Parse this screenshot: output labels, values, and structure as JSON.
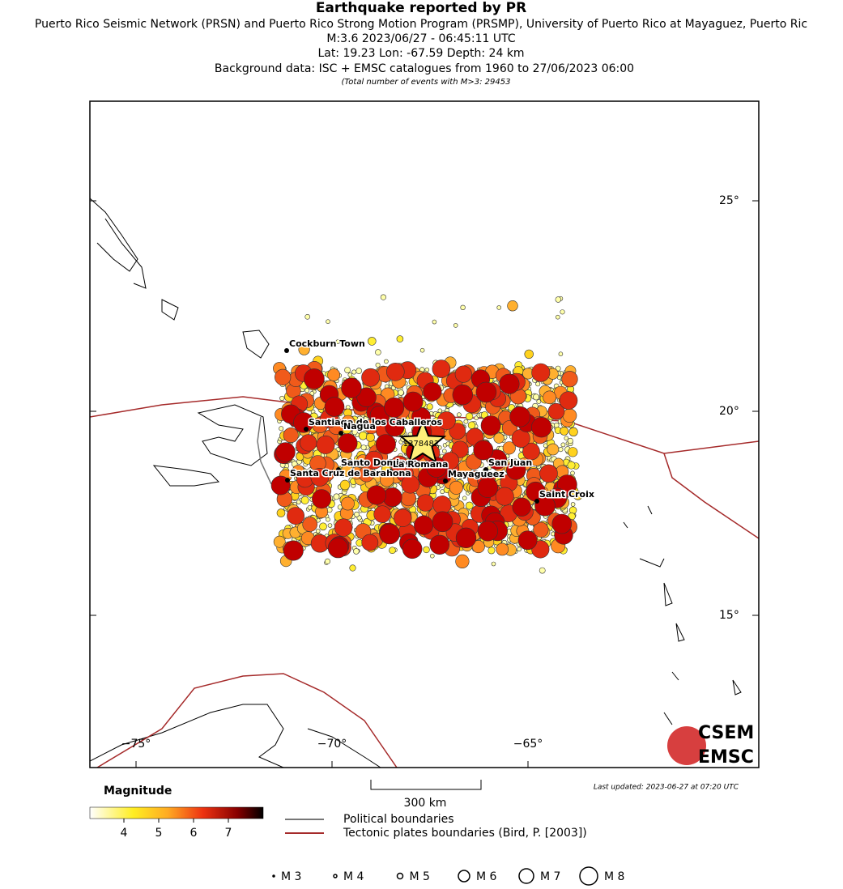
{
  "header": {
    "title": "Earthquake reported by PR",
    "lines": [
      "Puerto Rico Seismic Network (PRSN) and Puerto Rico Strong Motion Program (PRSMP), University of Puerto Rico at Mayaguez, Puerto Ric",
      "M:3.6 2023/06/27 - 06:45:11 UTC",
      "Lat: 19.23 Lon: -67.59 Depth: 24 km",
      "Background data: ISC + EMSC catalogues from 1960 to 27/06/2023 06:00"
    ],
    "note": "(Total number of events with M>3: 29453"
  },
  "map": {
    "lat_labels": [
      "25°",
      "20°",
      "15°"
    ],
    "lon_labels": [
      "−75°",
      "−70°",
      "−65°"
    ],
    "event_id": "1378482",
    "cities": [
      "Cockburn Town",
      "Santiago de los Caballeros",
      "Nagua",
      "Santo Domingo",
      "La Romana",
      "Santa Cruz de Barahona",
      "San Juan",
      "Mayagueez",
      "Saint Croix"
    ]
  },
  "legend": {
    "magnitude_title": "Magnitude",
    "magnitude_ticks": [
      "4",
      "5",
      "6",
      "7"
    ],
    "scale": "300 km",
    "political": "Political boundaries",
    "tectonic": "Tectonic plates boundaries (Bird, P. [2003])",
    "sizes": [
      "M 3",
      "M 4",
      "M 5",
      "M 6",
      "M 7",
      "M 8"
    ],
    "updated": "Last updated: 2023-06-27 at 07:20 UTC",
    "logo": [
      "CSEM",
      "EMSC"
    ]
  }
}
